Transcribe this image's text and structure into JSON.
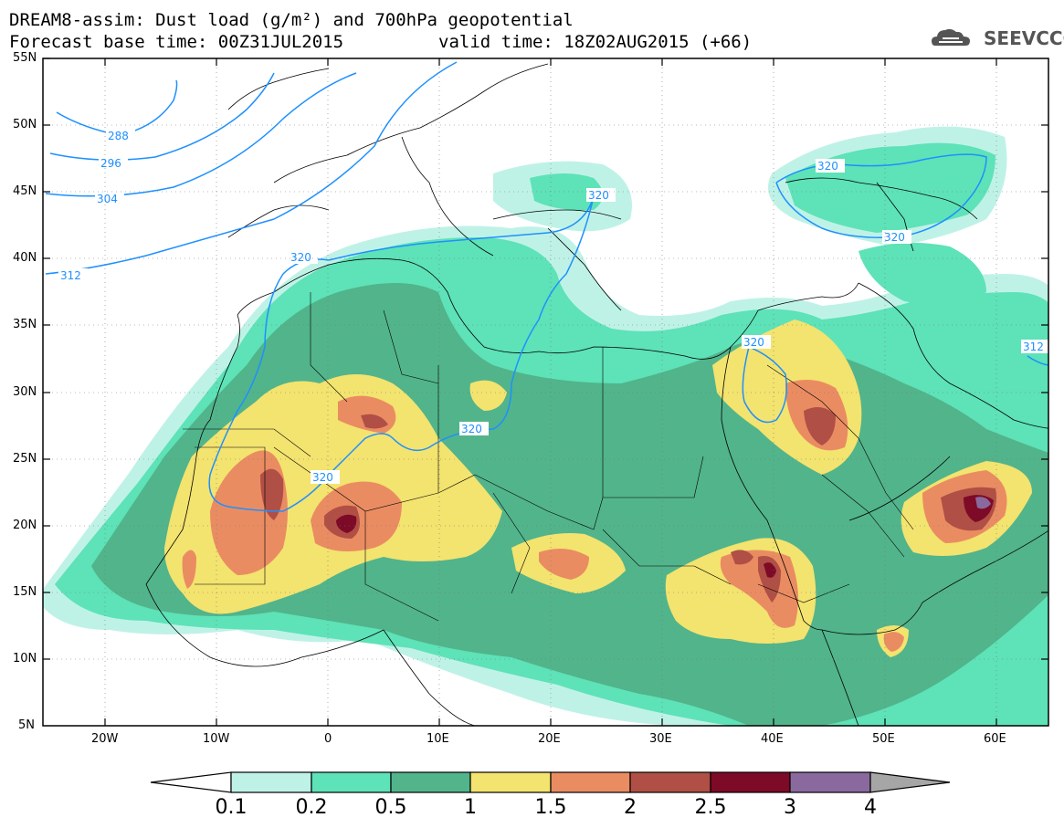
{
  "title": {
    "line1": "DREAM8-assim: Dust load (g/m²) and 700hPa geopotential",
    "line2a": "Forecast base time: 00Z31JUL2015",
    "line2b": "valid time: 18Z02AUG2015 (+66)"
  },
  "logo": {
    "text": "SEEVCCC",
    "icon": "cloud-icon"
  },
  "axes": {
    "lat_labels": [
      "55N",
      "50N",
      "45N",
      "40N",
      "35N",
      "30N",
      "25N",
      "20N",
      "15N",
      "10N",
      "5N"
    ],
    "lon_labels": [
      "20W",
      "10W",
      "0",
      "10E",
      "20E",
      "30E",
      "40E",
      "50E",
      "60E"
    ]
  },
  "colorbar": {
    "labels": [
      "0.1",
      "0.2",
      "0.5",
      "1",
      "1.5",
      "2",
      "2.5",
      "3",
      "4"
    ],
    "colors": [
      "#bff2e6",
      "#5ee2b8",
      "#52b48b",
      "#f3e36f",
      "#ea8c62",
      "#b04f45",
      "#7d0a26",
      "#8a6a9e"
    ],
    "under_color": "#ffffff",
    "over_color": "#a6a6a6"
  },
  "contours": {
    "color": "#1e90ff",
    "labels": [
      "288",
      "296",
      "304",
      "312",
      "320",
      "320",
      "320",
      "320",
      "320",
      "320",
      "320",
      "312"
    ]
  }
}
